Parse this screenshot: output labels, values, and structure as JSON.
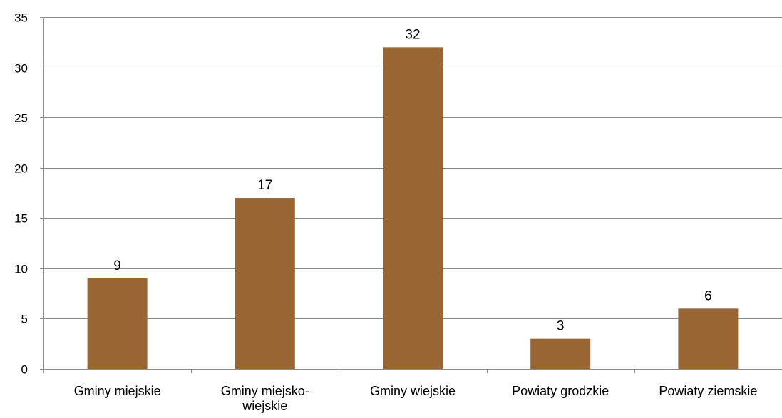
{
  "chart_data": {
    "type": "bar",
    "categories": [
      "Gminy miejskie",
      "Gminy miejsko-wiejskie",
      "Gminy wiejskie",
      "Powiaty grodzkie",
      "Powiaty ziemskie"
    ],
    "category_label_lines": [
      [
        "Gminy miejskie"
      ],
      [
        "Gminy miejsko-",
        "wiejskie"
      ],
      [
        "Gminy wiejskie"
      ],
      [
        "Powiaty grodzkie"
      ],
      [
        "Powiaty ziemskie"
      ]
    ],
    "values": [
      9,
      17,
      32,
      3,
      6
    ],
    "data_labels": [
      "9",
      "17",
      "32",
      "3",
      "6"
    ],
    "y_ticks": [
      0,
      5,
      10,
      15,
      20,
      25,
      30,
      35
    ],
    "y_tick_labels": [
      "0",
      "5",
      "10",
      "15",
      "20",
      "25",
      "30",
      "35"
    ],
    "ylim": [
      0,
      35
    ],
    "grid": true,
    "legend": "none",
    "bar_color": "#996633",
    "grid_color": "#8c8c8c",
    "axis_color": "#8c8c8c"
  }
}
